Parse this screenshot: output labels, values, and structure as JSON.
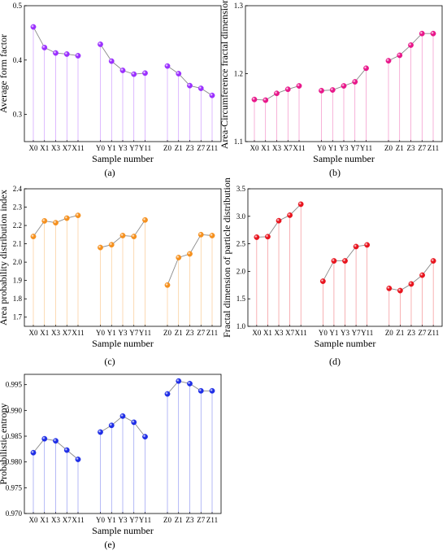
{
  "chart_data": [
    {
      "type": "scatter",
      "label": "(a)",
      "ylabel": "Average form factor",
      "xlabel": "Sample number",
      "ylim": [
        0.25,
        0.5
      ],
      "yticks": [
        0.3,
        0.4,
        0.5
      ],
      "color": "#9b30ff",
      "groups": [
        {
          "categories": [
            "X0",
            "X1",
            "X3",
            "X7",
            "X11"
          ],
          "values": [
            0.461,
            0.423,
            0.413,
            0.411,
            0.408
          ]
        },
        {
          "categories": [
            "Y0",
            "Y1",
            "Y3",
            "Y7",
            "Y11"
          ],
          "values": [
            0.429,
            0.398,
            0.381,
            0.374,
            0.376
          ]
        },
        {
          "categories": [
            "Z0",
            "Z1",
            "Z3",
            "Z7",
            "Z11"
          ],
          "values": [
            0.389,
            0.375,
            0.353,
            0.348,
            0.335
          ]
        }
      ]
    },
    {
      "type": "scatter",
      "label": "(b)",
      "ylabel": "Area-Circumference fractal dimension",
      "xlabel": "Sample number",
      "ylim": [
        1.1,
        1.3
      ],
      "yticks": [
        1.1,
        1.2,
        1.3
      ],
      "color": "#e8178a",
      "groups": [
        {
          "categories": [
            "X0",
            "X1",
            "X3",
            "X7",
            "X11"
          ],
          "values": [
            1.162,
            1.161,
            1.171,
            1.177,
            1.182
          ]
        },
        {
          "categories": [
            "Y0",
            "Y1",
            "Y3",
            "Y7",
            "Y11"
          ],
          "values": [
            1.175,
            1.176,
            1.182,
            1.188,
            1.208
          ]
        },
        {
          "categories": [
            "Z0",
            "Z1",
            "Z3",
            "Z7",
            "Z11"
          ],
          "values": [
            1.219,
            1.227,
            1.242,
            1.259,
            1.259
          ]
        }
      ]
    },
    {
      "type": "scatter",
      "label": "(c)",
      "ylabel": "Area probability distribution index",
      "xlabel": "Sample number",
      "ylim": [
        1.65,
        2.4
      ],
      "yticks": [
        1.7,
        1.8,
        1.9,
        2.0,
        2.1,
        2.2,
        2.3,
        2.4
      ],
      "color": "#f5901e",
      "groups": [
        {
          "categories": [
            "X0",
            "X1",
            "X3",
            "X7",
            "X11"
          ],
          "values": [
            2.14,
            2.225,
            2.215,
            2.24,
            2.255
          ]
        },
        {
          "categories": [
            "Y0",
            "Y1",
            "Y3",
            "Y7",
            "Y11"
          ],
          "values": [
            2.08,
            2.095,
            2.145,
            2.14,
            2.23
          ]
        },
        {
          "categories": [
            "Z0",
            "Z1",
            "Z3",
            "Z7",
            "Z11"
          ],
          "values": [
            1.875,
            2.025,
            2.045,
            2.15,
            2.145
          ]
        }
      ]
    },
    {
      "type": "scatter",
      "label": "(d)",
      "ylabel": "Fractal dimension of particle distribution",
      "xlabel": "Sample number",
      "ylim": [
        1.0,
        3.5
      ],
      "yticks": [
        1.0,
        1.5,
        2.0,
        2.5,
        3.0,
        3.5
      ],
      "color": "#e8141e",
      "groups": [
        {
          "categories": [
            "X0",
            "X1",
            "X3",
            "X7",
            "X11"
          ],
          "values": [
            2.62,
            2.63,
            2.92,
            3.02,
            3.22
          ]
        },
        {
          "categories": [
            "Y0",
            "Y1",
            "Y3",
            "Y7",
            "Y11"
          ],
          "values": [
            1.82,
            2.19,
            2.19,
            2.45,
            2.48
          ]
        },
        {
          "categories": [
            "Z0",
            "Z1",
            "Z3",
            "Z7",
            "Z11"
          ],
          "values": [
            1.69,
            1.65,
            1.77,
            1.93,
            2.19
          ]
        }
      ]
    },
    {
      "type": "scatter",
      "label": "(e)",
      "ylabel": "Probabilistic entropy",
      "xlabel": "Sample number",
      "ylim": [
        0.97,
        0.997
      ],
      "yticks": [
        0.97,
        0.975,
        0.98,
        0.985,
        0.99,
        0.995
      ],
      "ytick_labels": [
        "0.970",
        "0.975",
        "0.980",
        "0.985",
        "0.990",
        "0.995"
      ],
      "color": "#1f2ee6",
      "groups": [
        {
          "categories": [
            "X0",
            "X1",
            "X3",
            "X7",
            "X11"
          ],
          "values": [
            0.9818,
            0.9845,
            0.9841,
            0.9823,
            0.9805
          ]
        },
        {
          "categories": [
            "Y0",
            "Y1",
            "Y3",
            "Y7",
            "Y11"
          ],
          "values": [
            0.9858,
            0.9871,
            0.9889,
            0.9877,
            0.9849
          ]
        },
        {
          "categories": [
            "Z0",
            "Z1",
            "Z3",
            "Z7",
            "Z11"
          ],
          "values": [
            0.9932,
            0.9957,
            0.9952,
            0.9938,
            0.9938
          ]
        }
      ]
    }
  ]
}
